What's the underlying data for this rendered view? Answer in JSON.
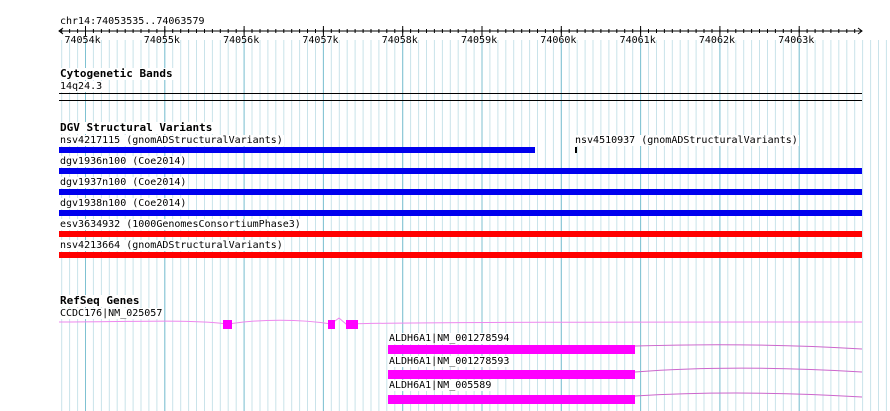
{
  "ruler": {
    "region_label": "chr14:74053535..74063579",
    "tick_labels": [
      "74054k",
      "74055k",
      "74056k",
      "74057k",
      "74058k",
      "74059k",
      "74060k",
      "74061k",
      "74062k",
      "74063k"
    ]
  },
  "cytoband_track": {
    "title": "Cytogenetic Bands",
    "band_label": "14q24.3"
  },
  "dgv_track": {
    "title": "DGV Structural Variants",
    "features": [
      {
        "label": "nsv4217115 (gnomADStructuralVariants)",
        "color": "#0000ee"
      },
      {
        "label": "nsv4510937 (gnomADStructuralVariants)",
        "color": "#000000"
      },
      {
        "label": "dgv1936n100 (Coe2014)",
        "color": "#0000ee"
      },
      {
        "label": "dgv1937n100 (Coe2014)",
        "color": "#0000ee"
      },
      {
        "label": "dgv1938n100 (Coe2014)",
        "color": "#0000ee"
      },
      {
        "label": "esv3634932 (1000GenomesConsortiumPhase3)",
        "color": "#ff0000"
      },
      {
        "label": "nsv4213664 (gnomADStructuralVariants)",
        "color": "#ff0000"
      }
    ]
  },
  "refseq_track": {
    "title": "RefSeq Genes",
    "genes": [
      {
        "label": "CCDC176|NM_025057",
        "color": "#ff00ff"
      },
      {
        "label": "ALDH6A1|NM_001278594",
        "color": "#ff00ff"
      },
      {
        "label": "ALDH6A1|NM_001278593",
        "color": "#ff00ff"
      },
      {
        "label": "ALDH6A1|NM_005589",
        "color": "#ff00ff"
      }
    ]
  }
}
